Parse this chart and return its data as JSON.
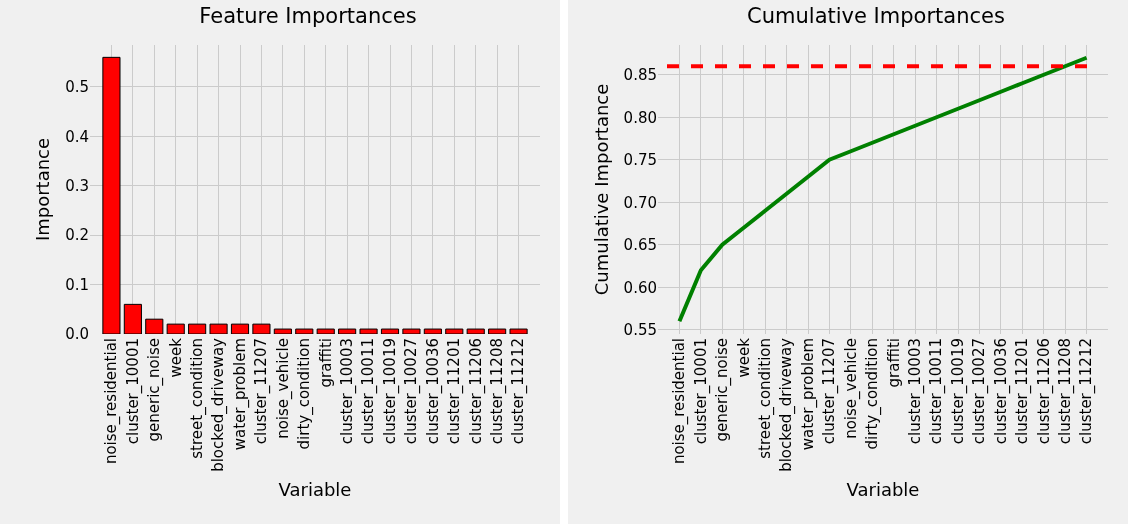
{
  "chart_data": [
    {
      "type": "bar",
      "title": "Feature Importances",
      "xlabel": "Variable",
      "ylabel": "Importance",
      "categories": [
        "noise_residential",
        "cluster_10001",
        "generic_noise",
        "week",
        "street_condition",
        "blocked_driveway",
        "water_problem",
        "cluster_11207",
        "noise_vehicle",
        "dirty_condition",
        "graffiti",
        "cluster_10003",
        "cluster_10011",
        "cluster_10019",
        "cluster_10027",
        "cluster_10036",
        "cluster_11201",
        "cluster_11206",
        "cluster_11208",
        "cluster_11212"
      ],
      "series": [
        {
          "color": "#ff0000",
          "values": [
            0.56,
            0.06,
            0.03,
            0.02,
            0.02,
            0.02,
            0.02,
            0.02,
            0.01,
            0.01,
            0.01,
            0.01,
            0.01,
            0.01,
            0.01,
            0.01,
            0.01,
            0.01,
            0.01,
            0.01
          ]
        }
      ],
      "ylim": [
        0,
        0.585
      ],
      "yticks": [
        {
          "value": 0,
          "label": "0.0"
        },
        0.1,
        0.2,
        0.3,
        0.4,
        0.5
      ],
      "grid": true
    },
    {
      "type": "line",
      "title": "Cumulative Importances",
      "xlabel": "Variable",
      "ylabel": "Cumulative Importance",
      "categories": [
        "noise_residential",
        "cluster_10001",
        "generic_noise",
        "week",
        "street_condition",
        "blocked_driveway",
        "water_problem",
        "cluster_11207",
        "noise_vehicle",
        "dirty_condition",
        "graffiti",
        "cluster_10003",
        "cluster_10011",
        "cluster_10019",
        "cluster_10027",
        "cluster_10036",
        "cluster_11201",
        "cluster_11206",
        "cluster_11208",
        "cluster_11212"
      ],
      "series": [
        {
          "color": "#008000",
          "values": [
            0.56,
            0.62,
            0.65,
            0.67,
            0.69,
            0.71,
            0.73,
            0.75,
            0.76,
            0.77,
            0.78,
            0.79,
            0.8,
            0.81,
            0.82,
            0.83,
            0.84,
            0.85,
            0.86,
            0.87
          ]
        }
      ],
      "ylim": [
        0.545,
        0.885
      ],
      "yticks": [
        0.55,
        {
          "value": 0.6,
          "label": "0.60"
        },
        0.65,
        {
          "value": 0.7,
          "label": "0.70"
        },
        0.75,
        {
          "value": 0.8,
          "label": "0.80"
        },
        0.85
      ],
      "ref_lines": [
        {
          "axis": "y",
          "value": 0.86,
          "color": "#ff0000",
          "line_style": "dashed"
        }
      ],
      "grid": true
    }
  ]
}
